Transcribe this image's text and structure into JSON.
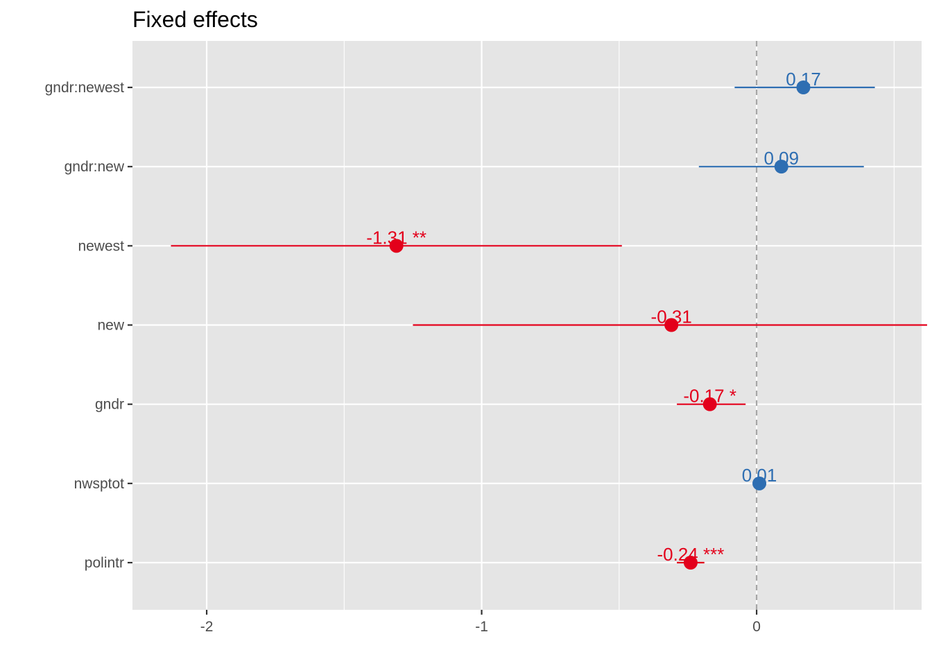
{
  "chart_data": {
    "type": "scatter",
    "title": "Fixed effects",
    "xlabel": "",
    "ylabel": "",
    "xlim": [
      -2.27,
      0.6
    ],
    "x_ticks": [
      -2,
      -1,
      0
    ],
    "x_tick_labels": [
      "-2",
      "-1",
      "0"
    ],
    "reference_line": 0,
    "grid": true,
    "colors": {
      "positive": "#2e6eb2",
      "negative": "#e3001b",
      "panel": "#e5e5e5",
      "grid": "#ffffff",
      "refline": "#a6a6a6"
    },
    "terms": [
      {
        "term": "gndr:newest",
        "estimate": 0.17,
        "ci_low": -0.08,
        "ci_high": 0.43,
        "label": "0.17"
      },
      {
        "term": "gndr:new",
        "estimate": 0.09,
        "ci_low": -0.21,
        "ci_high": 0.39,
        "label": "0.09"
      },
      {
        "term": "newest",
        "estimate": -1.31,
        "ci_low": -2.13,
        "ci_high": -0.49,
        "label": "-1.31 **"
      },
      {
        "term": "new",
        "estimate": -0.31,
        "ci_low": -1.25,
        "ci_high": 0.62,
        "label": "-0.31"
      },
      {
        "term": "gndr",
        "estimate": -0.17,
        "ci_low": -0.29,
        "ci_high": -0.04,
        "label": "-0.17 *"
      },
      {
        "term": "nwsptot",
        "estimate": 0.01,
        "ci_low": 0.0,
        "ci_high": 0.01,
        "label": "0.01"
      },
      {
        "term": "polintr",
        "estimate": -0.24,
        "ci_low": -0.29,
        "ci_high": -0.19,
        "label": "-0.24 ***"
      }
    ]
  }
}
